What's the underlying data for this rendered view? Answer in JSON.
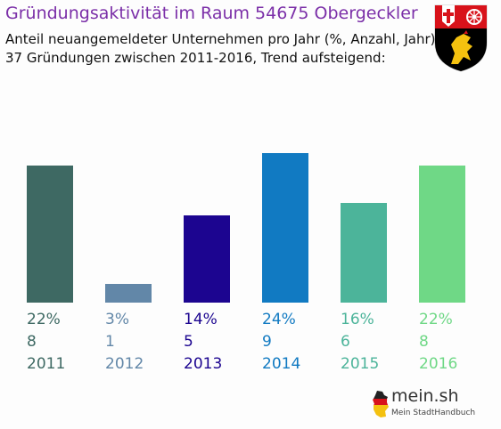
{
  "header": {
    "title": "Gründungsaktivität im Raum 54675 Obergeckler",
    "subtitle_line1": "Anteil neuangemeldeter Unternehmen pro Jahr (%, Anzahl, Jahr)",
    "subtitle_line2": "37 Gründungen zwischen 2011-2016, Trend aufsteigend:"
  },
  "coat_of_arms": {
    "icon": "rhineland-palatinate-coat-of-arms-icon"
  },
  "brand": {
    "name": "mein.sh",
    "tagline": "Mein StadtHandbuch",
    "icon": "germany-map-icon"
  },
  "chart_data": {
    "type": "bar",
    "categories": [
      "2011",
      "2012",
      "2013",
      "2014",
      "2015",
      "2016"
    ],
    "values": [
      22,
      3,
      14,
      24,
      16,
      22
    ],
    "value_labels": [
      "22%",
      "3%",
      "14%",
      "24%",
      "16%",
      "22%"
    ],
    "counts": [
      "8",
      "1",
      "5",
      "9",
      "6",
      "8"
    ],
    "colors": [
      "#3e6963",
      "#6287a8",
      "#1c0590",
      "#117ac2",
      "#4cb49a",
      "#6fd886"
    ],
    "ylim": [
      0,
      24
    ],
    "grid": false,
    "legend": "none"
  }
}
